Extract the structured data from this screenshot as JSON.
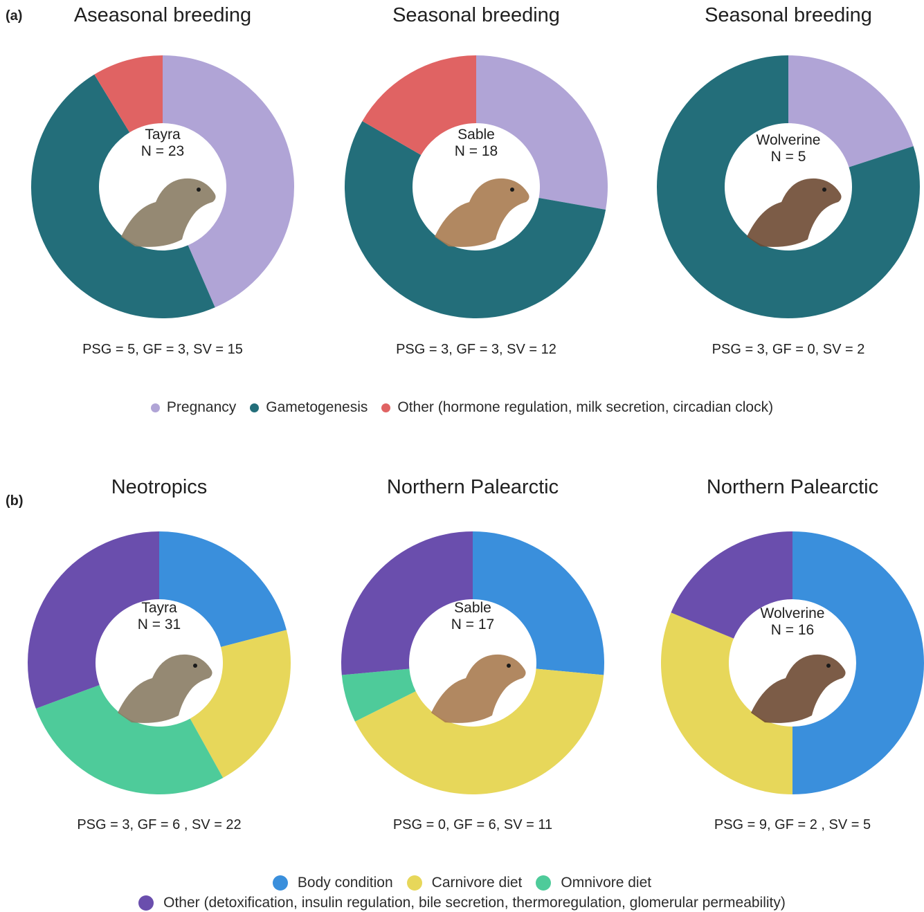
{
  "colors": {
    "pregnancy": "#b0a4d6",
    "gametogenesis": "#236e7a",
    "other_a": "#e06363",
    "body_condition": "#3a8fdc",
    "carnivore_diet": "#e7d75a",
    "omnivore_diet": "#4ecb9a",
    "other_b": "#6a4ead"
  },
  "panel_a": {
    "label": "(a)",
    "legend": [
      {
        "name": "Pregnancy",
        "color": "#b0a4d6"
      },
      {
        "name": "Gametogenesis",
        "color": "#236e7a"
      },
      {
        "name": "Other (hormone regulation, milk secretion, circadian clock)",
        "color": "#e06363"
      }
    ]
  },
  "panel_b": {
    "label": "(b)",
    "legend_row1": [
      {
        "name": "Body condition",
        "color": "#3a8fdc"
      },
      {
        "name": "Carnivore diet",
        "color": "#e7d75a"
      },
      {
        "name": "Omnivore diet",
        "color": "#4ecb9a"
      }
    ],
    "legend_row2": [
      {
        "name": "Other (detoxification, insulin regulation, bile secretion, thermoregulation, glomerular permeability)",
        "color": "#6a4ead"
      }
    ]
  },
  "chart_data": [
    {
      "type": "pie",
      "panel": "a",
      "title": "Aseasonal breeding",
      "species": "Tayra",
      "n_label": "N = 23",
      "counts_label": "PSG = 5, GF = 3, SV = 15",
      "slices": [
        {
          "name": "Pregnancy",
          "value": 10,
          "color": "#b0a4d6"
        },
        {
          "name": "Gametogenesis",
          "value": 11,
          "color": "#236e7a"
        },
        {
          "name": "Other",
          "value": 2,
          "color": "#e06363"
        }
      ]
    },
    {
      "type": "pie",
      "panel": "a",
      "title": "Seasonal breeding",
      "species": "Sable",
      "n_label": "N = 18",
      "counts_label": "PSG = 3, GF = 3, SV = 12",
      "slices": [
        {
          "name": "Pregnancy",
          "value": 5,
          "color": "#b0a4d6"
        },
        {
          "name": "Gametogenesis",
          "value": 10,
          "color": "#236e7a"
        },
        {
          "name": "Other",
          "value": 3,
          "color": "#e06363"
        }
      ]
    },
    {
      "type": "pie",
      "panel": "a",
      "title": "Seasonal breeding",
      "species": "Wolverine",
      "n_label": "N = 5",
      "counts_label": "PSG = 3, GF = 0, SV = 2",
      "slices": [
        {
          "name": "Pregnancy",
          "value": 1,
          "color": "#b0a4d6"
        },
        {
          "name": "Gametogenesis",
          "value": 4,
          "color": "#236e7a"
        }
      ]
    },
    {
      "type": "pie",
      "panel": "b",
      "title": "Neotropics",
      "species": "Tayra",
      "n_label": "N = 31",
      "counts_label": "PSG = 3, GF = 6 , SV = 22",
      "slices": [
        {
          "name": "Body condition",
          "value": 6.5,
          "color": "#3a8fdc"
        },
        {
          "name": "Carnivore diet",
          "value": 6.5,
          "color": "#e7d75a"
        },
        {
          "name": "Omnivore diet",
          "value": 8.5,
          "color": "#4ecb9a"
        },
        {
          "name": "Other",
          "value": 9.5,
          "color": "#6a4ead"
        }
      ]
    },
    {
      "type": "pie",
      "panel": "b",
      "title": "Northern Palearctic",
      "species": "Sable",
      "n_label": "N = 17",
      "counts_label": "PSG = 0, GF = 6, SV = 11",
      "slices": [
        {
          "name": "Body condition",
          "value": 4.5,
          "color": "#3a8fdc"
        },
        {
          "name": "Carnivore diet",
          "value": 7,
          "color": "#e7d75a"
        },
        {
          "name": "Omnivore diet",
          "value": 1,
          "color": "#4ecb9a"
        },
        {
          "name": "Other",
          "value": 4.5,
          "color": "#6a4ead"
        }
      ]
    },
    {
      "type": "pie",
      "panel": "b",
      "title": "Northern Palearctic",
      "species": "Wolverine",
      "n_label": "N = 16",
      "counts_label": "PSG = 9, GF = 2 , SV = 5",
      "slices": [
        {
          "name": "Body condition",
          "value": 8,
          "color": "#3a8fdc"
        },
        {
          "name": "Carnivore diet",
          "value": 5,
          "color": "#e7d75a"
        },
        {
          "name": "Other",
          "value": 3,
          "color": "#6a4ead"
        }
      ]
    }
  ]
}
